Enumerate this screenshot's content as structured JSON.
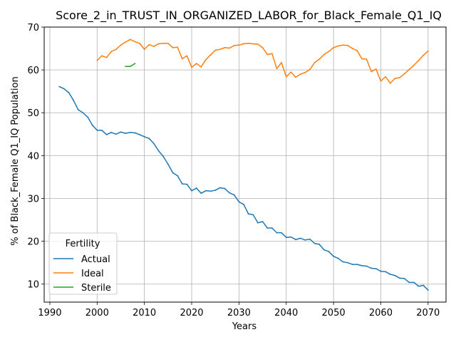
{
  "chart_data": {
    "type": "line",
    "title": "Score_2_in_TRUST_IN_ORGANIZED_LABOR_for_Black_Female_Q1_IQ",
    "xlabel": "Years",
    "ylabel": "% of Black_Female Q1_IQ Population",
    "xlim": [
      1988.8,
      2073.8
    ],
    "ylim": [
      5.8,
      70
    ],
    "xticks": [
      1990,
      2000,
      2010,
      2020,
      2030,
      2040,
      2050,
      2060,
      2070
    ],
    "yticks": [
      10,
      20,
      30,
      40,
      50,
      60,
      70
    ],
    "grid": true,
    "legend": {
      "title": "Fertility",
      "position": "lower-left"
    },
    "series": [
      {
        "name": "Actual",
        "color": "#1f77b4",
        "x": [
          1992,
          1993,
          1994,
          1995,
          1996,
          1997,
          1998,
          1999,
          2000,
          2001,
          2002,
          2003,
          2004,
          2005,
          2006,
          2007,
          2008,
          2009,
          2010,
          2011,
          2012,
          2013,
          2014,
          2015,
          2016,
          2017,
          2018,
          2019,
          2020,
          2021,
          2022,
          2023,
          2024,
          2025,
          2026,
          2027,
          2028,
          2029,
          2030,
          2031,
          2032,
          2033,
          2034,
          2035,
          2036,
          2037,
          2038,
          2039,
          2040,
          2041,
          2042,
          2043,
          2044,
          2045,
          2046,
          2047,
          2048,
          2049,
          2050,
          2051,
          2052,
          2053,
          2054,
          2055,
          2056,
          2057,
          2058,
          2059,
          2060,
          2061,
          2062,
          2063,
          2064,
          2065,
          2066,
          2067,
          2068,
          2069,
          2070
        ],
        "y": [
          56.1,
          55.6,
          54.7,
          52.9,
          50.7,
          50.0,
          49.0,
          47.1,
          45.9,
          45.9,
          44.9,
          45.4,
          45.0,
          45.5,
          45.2,
          45.4,
          45.3,
          44.9,
          44.4,
          44.0,
          42.8,
          41.1,
          39.8,
          38.0,
          36.0,
          35.3,
          33.4,
          33.3,
          31.8,
          32.4,
          31.2,
          31.8,
          31.7,
          31.9,
          32.5,
          32.3,
          31.3,
          30.8,
          29.2,
          28.6,
          26.4,
          26.2,
          24.3,
          24.6,
          23.1,
          23.1,
          22.0,
          22.0,
          20.9,
          21.0,
          20.4,
          20.7,
          20.3,
          20.5,
          19.5,
          19.3,
          18.0,
          17.6,
          16.5,
          16.0,
          15.2,
          15.0,
          14.6,
          14.6,
          14.3,
          14.2,
          13.7,
          13.6,
          13.0,
          12.9,
          12.3,
          12.0,
          11.4,
          11.3,
          10.4,
          10.4,
          9.5,
          9.7,
          8.6
        ]
      },
      {
        "name": "Ideal",
        "color": "#ff7f0e",
        "x": [
          2000,
          2001,
          2002,
          2003,
          2004,
          2005,
          2006,
          2007,
          2008,
          2009,
          2010,
          2011,
          2012,
          2013,
          2014,
          2015,
          2016,
          2017,
          2018,
          2019,
          2020,
          2021,
          2022,
          2023,
          2024,
          2025,
          2026,
          2027,
          2028,
          2029,
          2030,
          2031,
          2032,
          2033,
          2034,
          2035,
          2036,
          2037,
          2038,
          2039,
          2040,
          2041,
          2042,
          2043,
          2044,
          2045,
          2046,
          2047,
          2048,
          2049,
          2050,
          2051,
          2052,
          2053,
          2054,
          2055,
          2056,
          2057,
          2058,
          2059,
          2060,
          2061,
          2062,
          2063,
          2064,
          2065,
          2066,
          2067,
          2068,
          2069,
          2070
        ],
        "y": [
          62.2,
          63.3,
          62.9,
          64.3,
          64.8,
          65.8,
          66.5,
          67.1,
          66.6,
          66.2,
          64.8,
          65.9,
          65.5,
          66.1,
          66.2,
          66.2,
          65.2,
          65.3,
          62.6,
          63.3,
          60.6,
          61.5,
          60.7,
          62.4,
          63.5,
          64.6,
          64.8,
          65.2,
          65.1,
          65.7,
          65.8,
          66.1,
          66.2,
          66.1,
          66.0,
          65.2,
          63.6,
          63.8,
          60.3,
          61.7,
          58.4,
          59.5,
          58.3,
          59.0,
          59.4,
          60.1,
          61.7,
          62.5,
          63.6,
          64.3,
          65.2,
          65.6,
          65.8,
          65.7,
          65.0,
          64.5,
          62.6,
          62.5,
          59.6,
          60.2,
          57.4,
          58.4,
          56.9,
          58.0,
          58.2,
          59.1,
          60.1,
          61.1,
          62.2,
          63.4,
          64.4
        ]
      },
      {
        "name": "Sterile",
        "color": "#2ca02c",
        "x": [
          2006,
          2007,
          2008
        ],
        "y": [
          60.8,
          60.8,
          61.5
        ]
      }
    ]
  }
}
